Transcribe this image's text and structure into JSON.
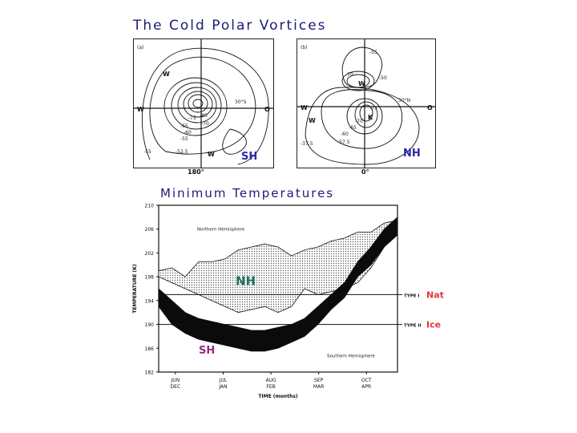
{
  "title": "The Cold Polar Vortices",
  "panel_a": {
    "letter": "(a)",
    "west": "W",
    "east": "O",
    "lat": "30°S",
    "bottom": "180°",
    "hemisphere": "SH",
    "contours": [
      "-80",
      "-75",
      "-70",
      "-65",
      "-60",
      "-55",
      "-52.5",
      "-55"
    ],
    "marks": [
      "W",
      "W"
    ]
  },
  "panel_b": {
    "letter": "(b)",
    "west": "W",
    "east": "O",
    "lat": "30°N",
    "bottom": "0°",
    "hemisphere": "NH",
    "contours": [
      "-55",
      "-50",
      "-70",
      "-73",
      "-70",
      "-65",
      "-60",
      "-57.5",
      "-37.5"
    ],
    "marks": [
      "W",
      "K",
      "W"
    ]
  },
  "subtitle": "Minimum Temperatures",
  "colors": {
    "ink": "#111111",
    "annotation_blue": "#2a2aa8",
    "annotation_green": "#1f6f5f",
    "annotation_purple": "#9a2a8a",
    "annotation_red": "#e23a3a"
  },
  "chart_data": {
    "type": "area",
    "ylabel": "TEMPERATURE (K)",
    "xlabel": "TIME (months)",
    "ylim": [
      182,
      210
    ],
    "yticks": [
      182,
      186,
      190,
      194,
      198,
      202,
      206,
      210
    ],
    "xticks": [
      {
        "top": "JUN",
        "bottom": "DEC"
      },
      {
        "top": "JUL",
        "bottom": "JAN"
      },
      {
        "top": "AUG",
        "bottom": "FEB"
      },
      {
        "top": "SEP",
        "bottom": "MAR"
      },
      {
        "top": "OCT",
        "bottom": "APR"
      }
    ],
    "series": [
      {
        "name": "Northern Hemisphere",
        "upper": [
          199,
          199.5,
          198,
          200.5,
          200.5,
          201,
          202.5,
          203,
          203.5,
          203,
          201.5,
          202.5,
          203,
          204,
          204.5,
          205.5,
          205.5,
          207,
          207.5
        ],
        "lower": [
          198,
          197,
          196,
          195,
          194,
          193,
          192,
          192.5,
          193,
          192,
          193,
          196,
          195,
          195.5,
          196,
          197,
          199.5,
          203,
          207
        ]
      },
      {
        "name": "Southern Hemisphere",
        "upper": [
          196,
          194,
          192,
          191,
          190.5,
          190,
          189.5,
          189,
          189,
          189.5,
          190,
          191,
          193,
          195,
          197,
          200.5,
          203,
          206,
          208
        ],
        "lower": [
          193,
          190,
          188.5,
          187.5,
          187,
          186.5,
          186,
          185.5,
          185.5,
          186,
          187,
          188,
          190,
          192.5,
          194.5,
          198,
          200,
          203,
          205
        ]
      }
    ],
    "thresholds": [
      {
        "label": "TYPE I",
        "value": 195,
        "annotation": "Nat"
      },
      {
        "label": "TYPE II",
        "value": 190,
        "annotation": "Ice"
      }
    ],
    "annotations": [
      "NH",
      "SH"
    ]
  }
}
